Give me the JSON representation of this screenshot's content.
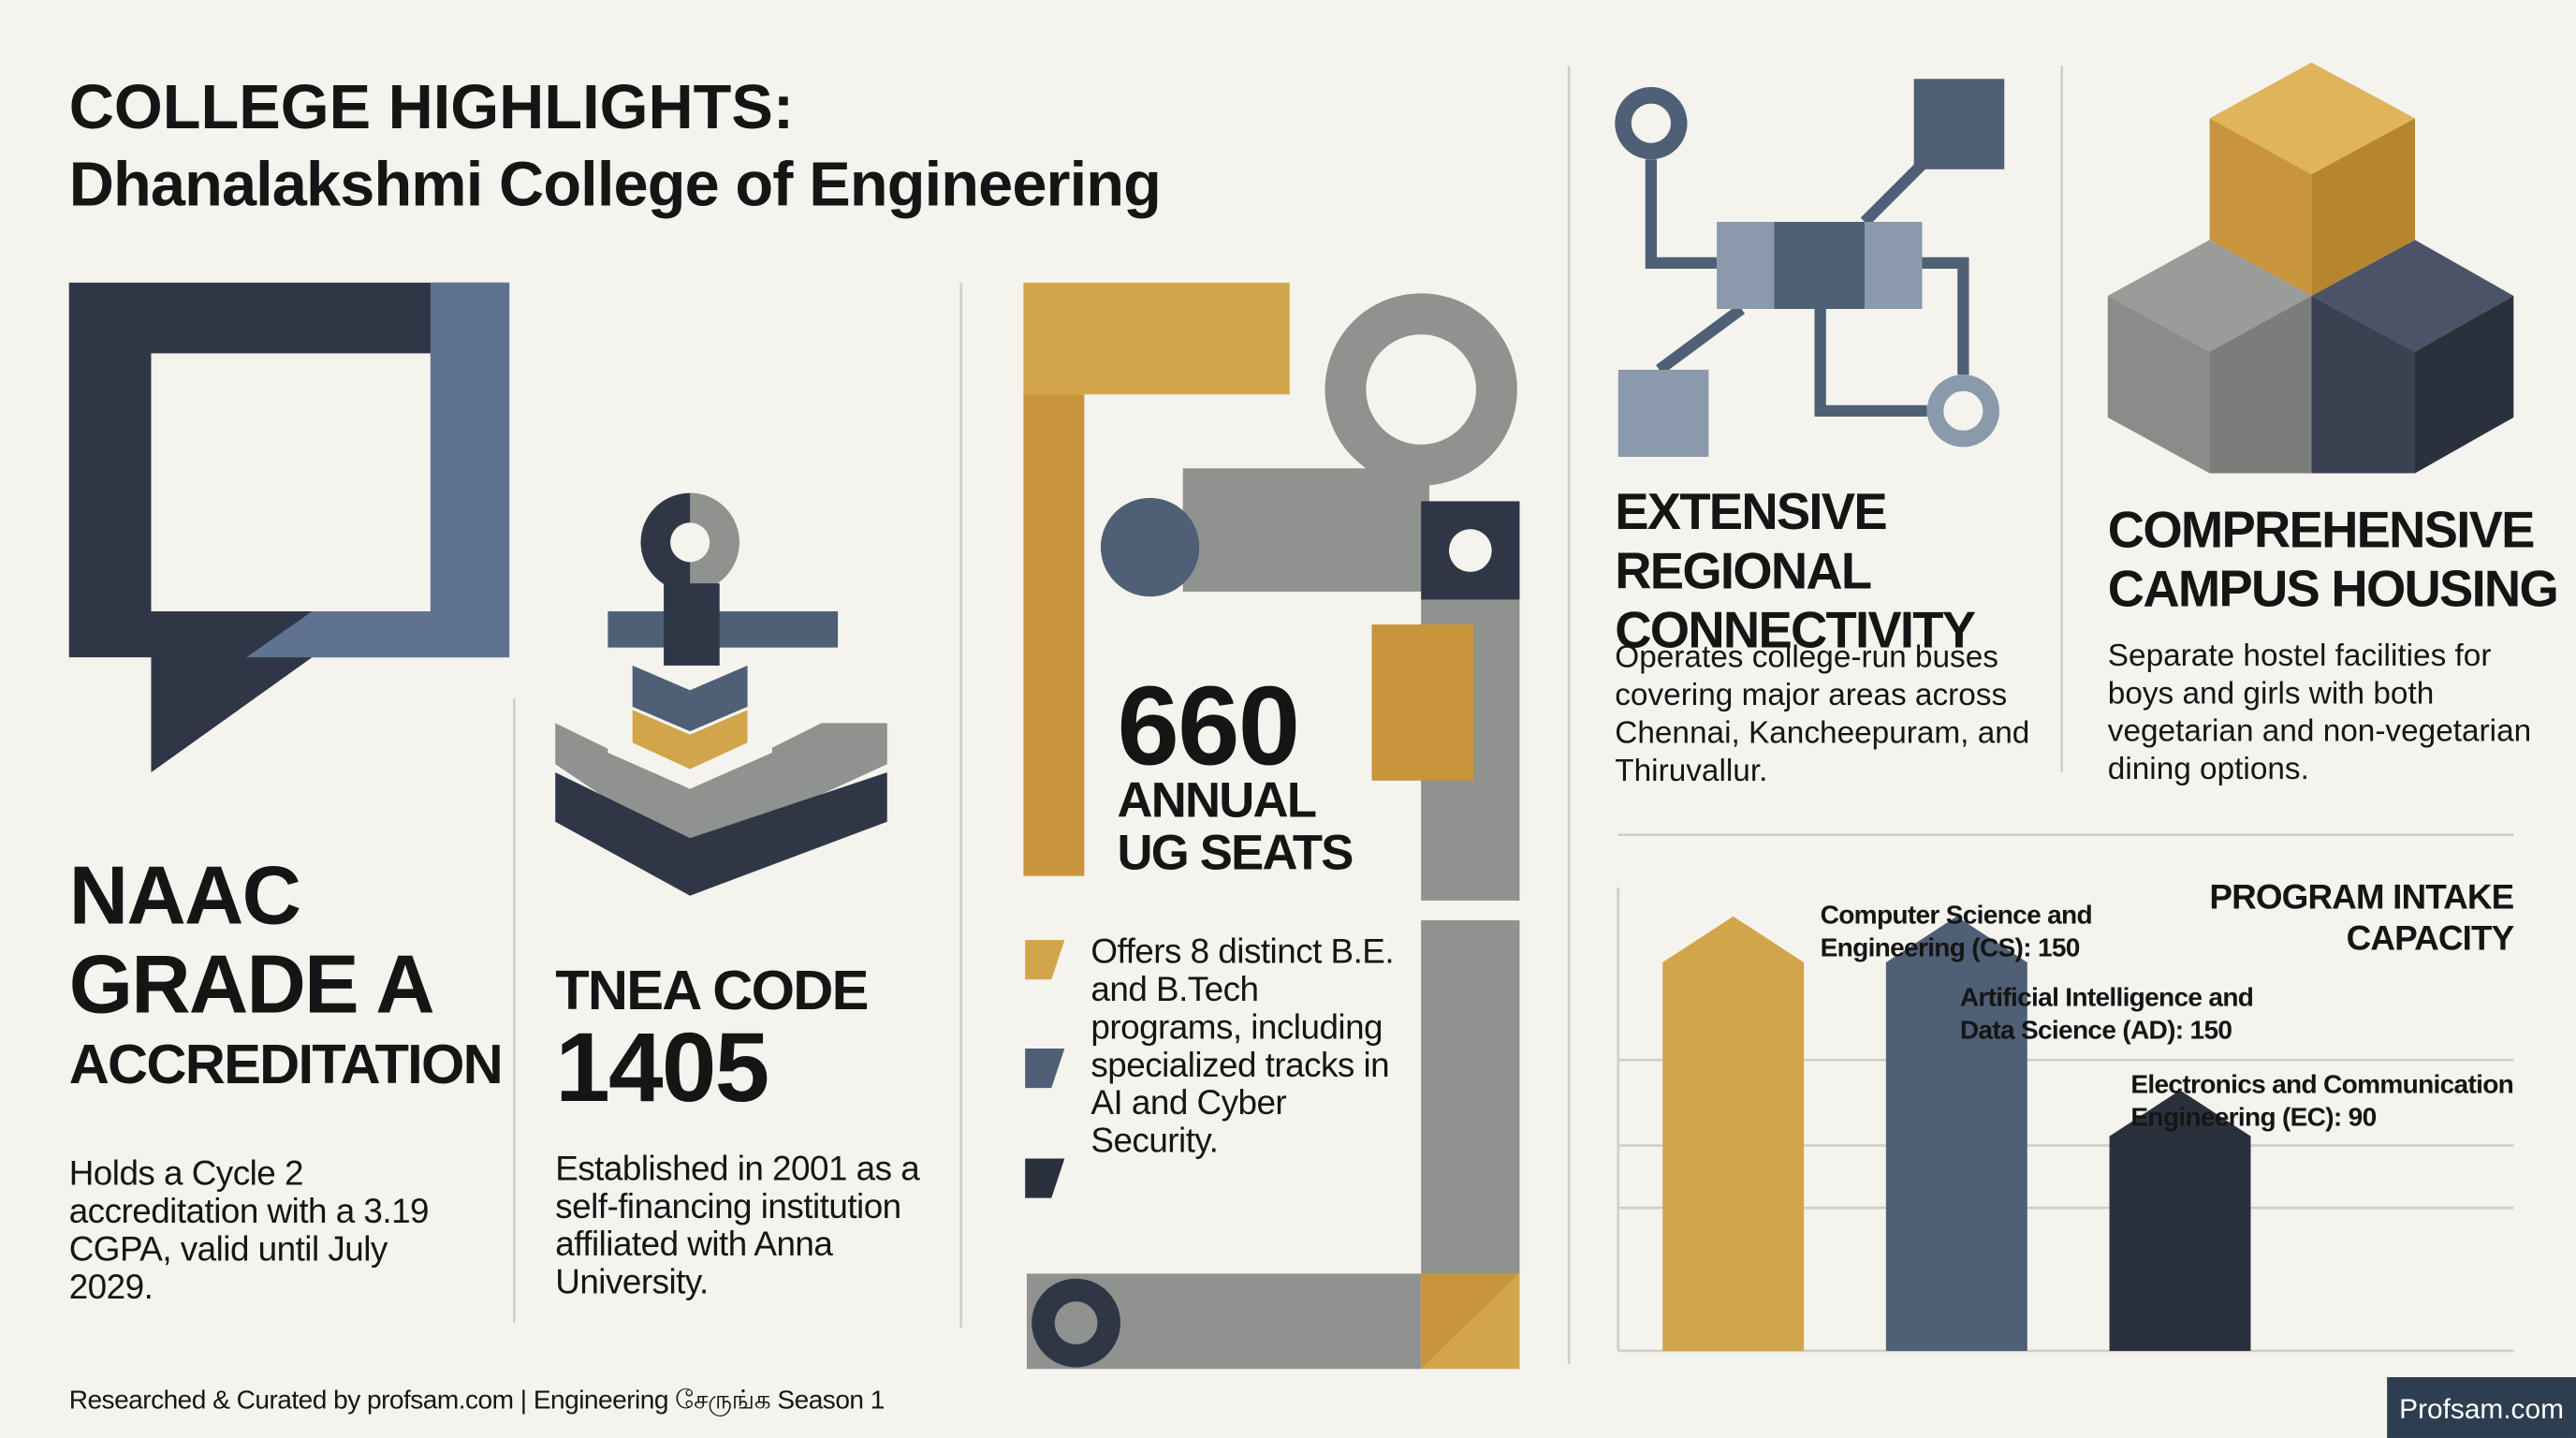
{
  "header": {
    "title": "COLLEGE HIGHLIGHTS:",
    "subtitle": "Dhanalakshmi College of Engineering"
  },
  "naac": {
    "heading_lines": [
      "NAAC",
      "GRADE A"
    ],
    "subheading": "ACCREDITATION",
    "text": "Holds a Cycle 2 accreditation with a 3.19 CGPA, valid until July 2029."
  },
  "tnea": {
    "heading": "TNEA CODE",
    "code": 1405,
    "text": "Established in 2001 as a self-financing institution affiliated with Anna University."
  },
  "seats": {
    "value": 660,
    "label_lines": [
      "ANNUAL",
      "UG SEATS"
    ],
    "text": "Offers 8 distinct B.E. and B.Tech programs, including specialized tracks in AI and Cyber Security."
  },
  "connectivity": {
    "title_lines": [
      "EXTENSIVE",
      "REGIONAL",
      "CONNECTIVITY"
    ],
    "text": "Operates college-run buses covering major areas across Chennai, Kancheepuram, and Thiruvallur."
  },
  "housing": {
    "title_lines": [
      "COMPREHENSIVE",
      "CAMPUS HOUSING"
    ],
    "text": "Separate hostel facilities for boys and girls with both vegetarian and non-vegetarian dining options."
  },
  "chart_data": {
    "type": "bar",
    "title": "PROGRAM INTAKE CAPACITY",
    "categories": [
      "Computer Science and Engineering (CS): 150",
      "Artificial Intelligence and Data Science (AD): 150",
      "Electronics and Communication Engineering (EC): 90"
    ],
    "values": [
      150,
      150,
      90
    ],
    "colors": [
      "#d2a54b",
      "#4f5f75",
      "#2b313c"
    ],
    "ylim": [
      0,
      160
    ]
  },
  "footer": {
    "credit": "Researched & Curated by profsam.com | Engineering சேருங்க Season 1",
    "brand": "Profsam.com"
  }
}
